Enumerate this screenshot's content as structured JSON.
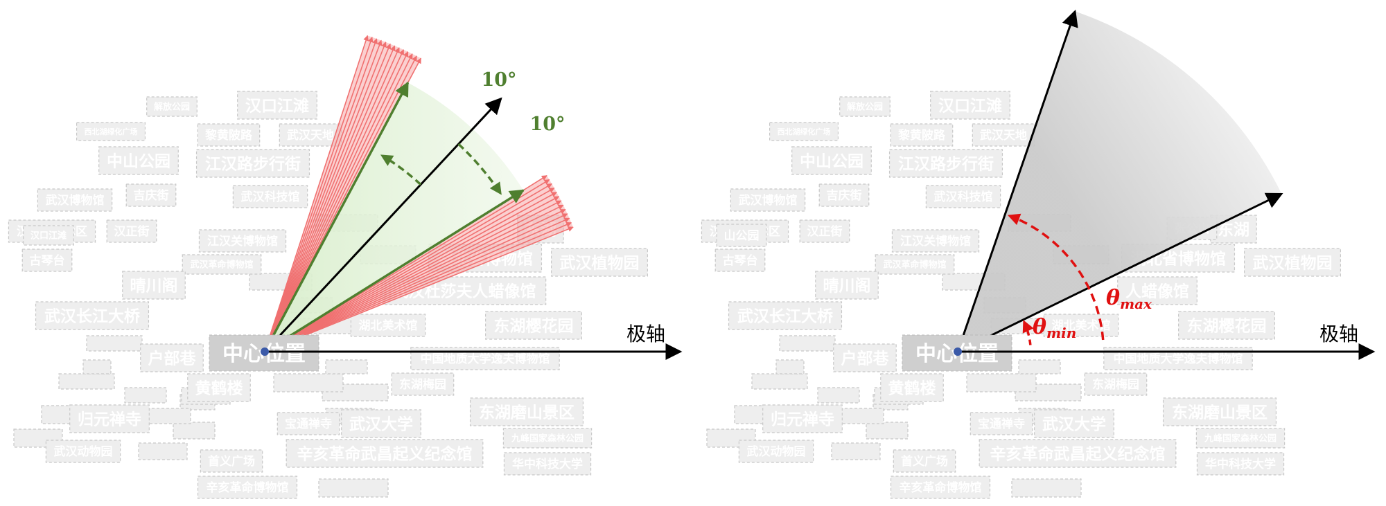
{
  "panels": [
    {
      "id": "left",
      "center_label": "中心位置",
      "polar_axis_label": "极轴",
      "angle_labels": [
        "10°",
        "10°"
      ],
      "words": [
        {
          "text": "解放公园",
          "size": "s"
        },
        {
          "text": "汉口江滩",
          "size": "l"
        },
        {
          "text": "西北湖绿化广场",
          "size": "xs"
        },
        {
          "text": "黎黄陂路",
          "size": "m"
        },
        {
          "text": "武汉天地",
          "size": "m"
        },
        {
          "text": "中山公园",
          "size": "l"
        },
        {
          "text": "江汉路步行街",
          "size": "l"
        },
        {
          "text": "武汉博物馆",
          "size": "m"
        },
        {
          "text": "吉庆街",
          "size": "m"
        },
        {
          "text": "武汉科技馆",
          "size": "m"
        },
        {
          "text": "汉阳造艺术区",
          "size": "m"
        },
        {
          "text": "汉正街",
          "size": "m"
        },
        {
          "text": "汉口江滩",
          "size": "s"
        },
        {
          "text": "江汉关博物馆",
          "size": "m"
        },
        {
          "text": "古琴台",
          "size": "m"
        },
        {
          "text": "武汉革命博物馆",
          "size": "s"
        },
        {
          "text": "晴川阁",
          "size": "l"
        },
        {
          "text": "武汉长江大桥",
          "size": "l"
        },
        {
          "text": "户部巷",
          "size": "l"
        },
        {
          "text": "黄鹤楼",
          "size": "l"
        },
        {
          "text": "归元禅寺",
          "size": "l"
        },
        {
          "text": "宝通禅寺",
          "size": "m"
        },
        {
          "text": "武汉大学",
          "size": "l"
        },
        {
          "text": "武汉动物园",
          "size": "m"
        },
        {
          "text": "首义广场",
          "size": "m"
        },
        {
          "text": "辛亥革命武昌起义纪念馆",
          "size": "l"
        },
        {
          "text": "辛亥革命博物馆",
          "size": "m"
        },
        {
          "text": "华中科技大学",
          "size": "m"
        },
        {
          "text": "东湖樱花园",
          "size": "l"
        },
        {
          "text": "东湖磨山景区",
          "size": "l"
        },
        {
          "text": "湖北美术馆",
          "size": "m"
        },
        {
          "text": "湖北省博物馆",
          "size": "l"
        },
        {
          "text": "武汉杜莎夫人蜡像馆",
          "size": "l"
        },
        {
          "text": "武汉植物园",
          "size": "l"
        },
        {
          "text": "东湖",
          "size": "l"
        },
        {
          "text": "东湖梅园",
          "size": "m"
        },
        {
          "text": "中国地质大学逸夫博物馆",
          "size": "m"
        },
        {
          "text": "九峰国家森林公园",
          "size": "s"
        }
      ]
    },
    {
      "id": "right",
      "center_label": "中心位置",
      "polar_axis_label": "极轴",
      "theta_max_label": "θ",
      "theta_max_sub": "max",
      "theta_min_label": "θ",
      "theta_min_sub": "min",
      "words": [
        {
          "text": "解放公园",
          "size": "s"
        },
        {
          "text": "汉口江滩",
          "size": "l"
        },
        {
          "text": "西北湖绿化广场",
          "size": "xs"
        },
        {
          "text": "黎黄陂路",
          "size": "m"
        },
        {
          "text": "武汉天地",
          "size": "m"
        },
        {
          "text": "中山公园",
          "size": "l"
        },
        {
          "text": "江汉路步行街",
          "size": "l"
        },
        {
          "text": "武汉博物馆",
          "size": "m"
        },
        {
          "text": "吉庆街",
          "size": "m"
        },
        {
          "text": "武汉科技馆",
          "size": "m"
        },
        {
          "text": "汉阳造艺术区",
          "size": "m"
        },
        {
          "text": "汉正街",
          "size": "m"
        },
        {
          "text": "山公园",
          "size": "m"
        },
        {
          "text": "江汉关博物馆",
          "size": "m"
        },
        {
          "text": "古琴台",
          "size": "m"
        },
        {
          "text": "武汉革命博物馆",
          "size": "s"
        },
        {
          "text": "晴川阁",
          "size": "l"
        },
        {
          "text": "武汉长江大桥",
          "size": "l"
        },
        {
          "text": "户部巷",
          "size": "l"
        },
        {
          "text": "黄鹤楼",
          "size": "l"
        },
        {
          "text": "归元禅寺",
          "size": "l"
        },
        {
          "text": "宝通禅寺",
          "size": "m"
        },
        {
          "text": "武汉大学",
          "size": "l"
        },
        {
          "text": "武汉动物园",
          "size": "m"
        },
        {
          "text": "首义广场",
          "size": "m"
        },
        {
          "text": "辛亥革命武昌起义纪念馆",
          "size": "l"
        },
        {
          "text": "辛亥革命博物馆",
          "size": "m"
        },
        {
          "text": "华中科技大学",
          "size": "m"
        },
        {
          "text": "东湖樱花园",
          "size": "l"
        },
        {
          "text": "东湖磨山景区",
          "size": "l"
        },
        {
          "text": "湖北美术馆",
          "size": "m"
        },
        {
          "text": "湖北省博物馆",
          "size": "l"
        },
        {
          "text": "人蜡像馆",
          "size": "l"
        },
        {
          "text": "武汉植物园",
          "size": "l"
        },
        {
          "text": "东湖",
          "size": "l"
        },
        {
          "text": "东湖梅园",
          "size": "m"
        },
        {
          "text": "中国地质大学逸夫博物馆",
          "size": "m"
        },
        {
          "text": "九峰国家森林公园",
          "size": "s"
        },
        {
          "text": "张公山",
          "size": "m"
        }
      ]
    }
  ],
  "colors": {
    "word_fill": "#eeeeee",
    "word_stroke": "#c8c8c8",
    "word_text": "#ffffff",
    "center_fill": "#cfcfcf",
    "ray_red": "#f07070",
    "sector_green": "#c9e6b8",
    "green_line": "#4f7f2f",
    "theta_red": "#e01010",
    "center_dot": "#3b5aa8",
    "axis": "#000000"
  }
}
